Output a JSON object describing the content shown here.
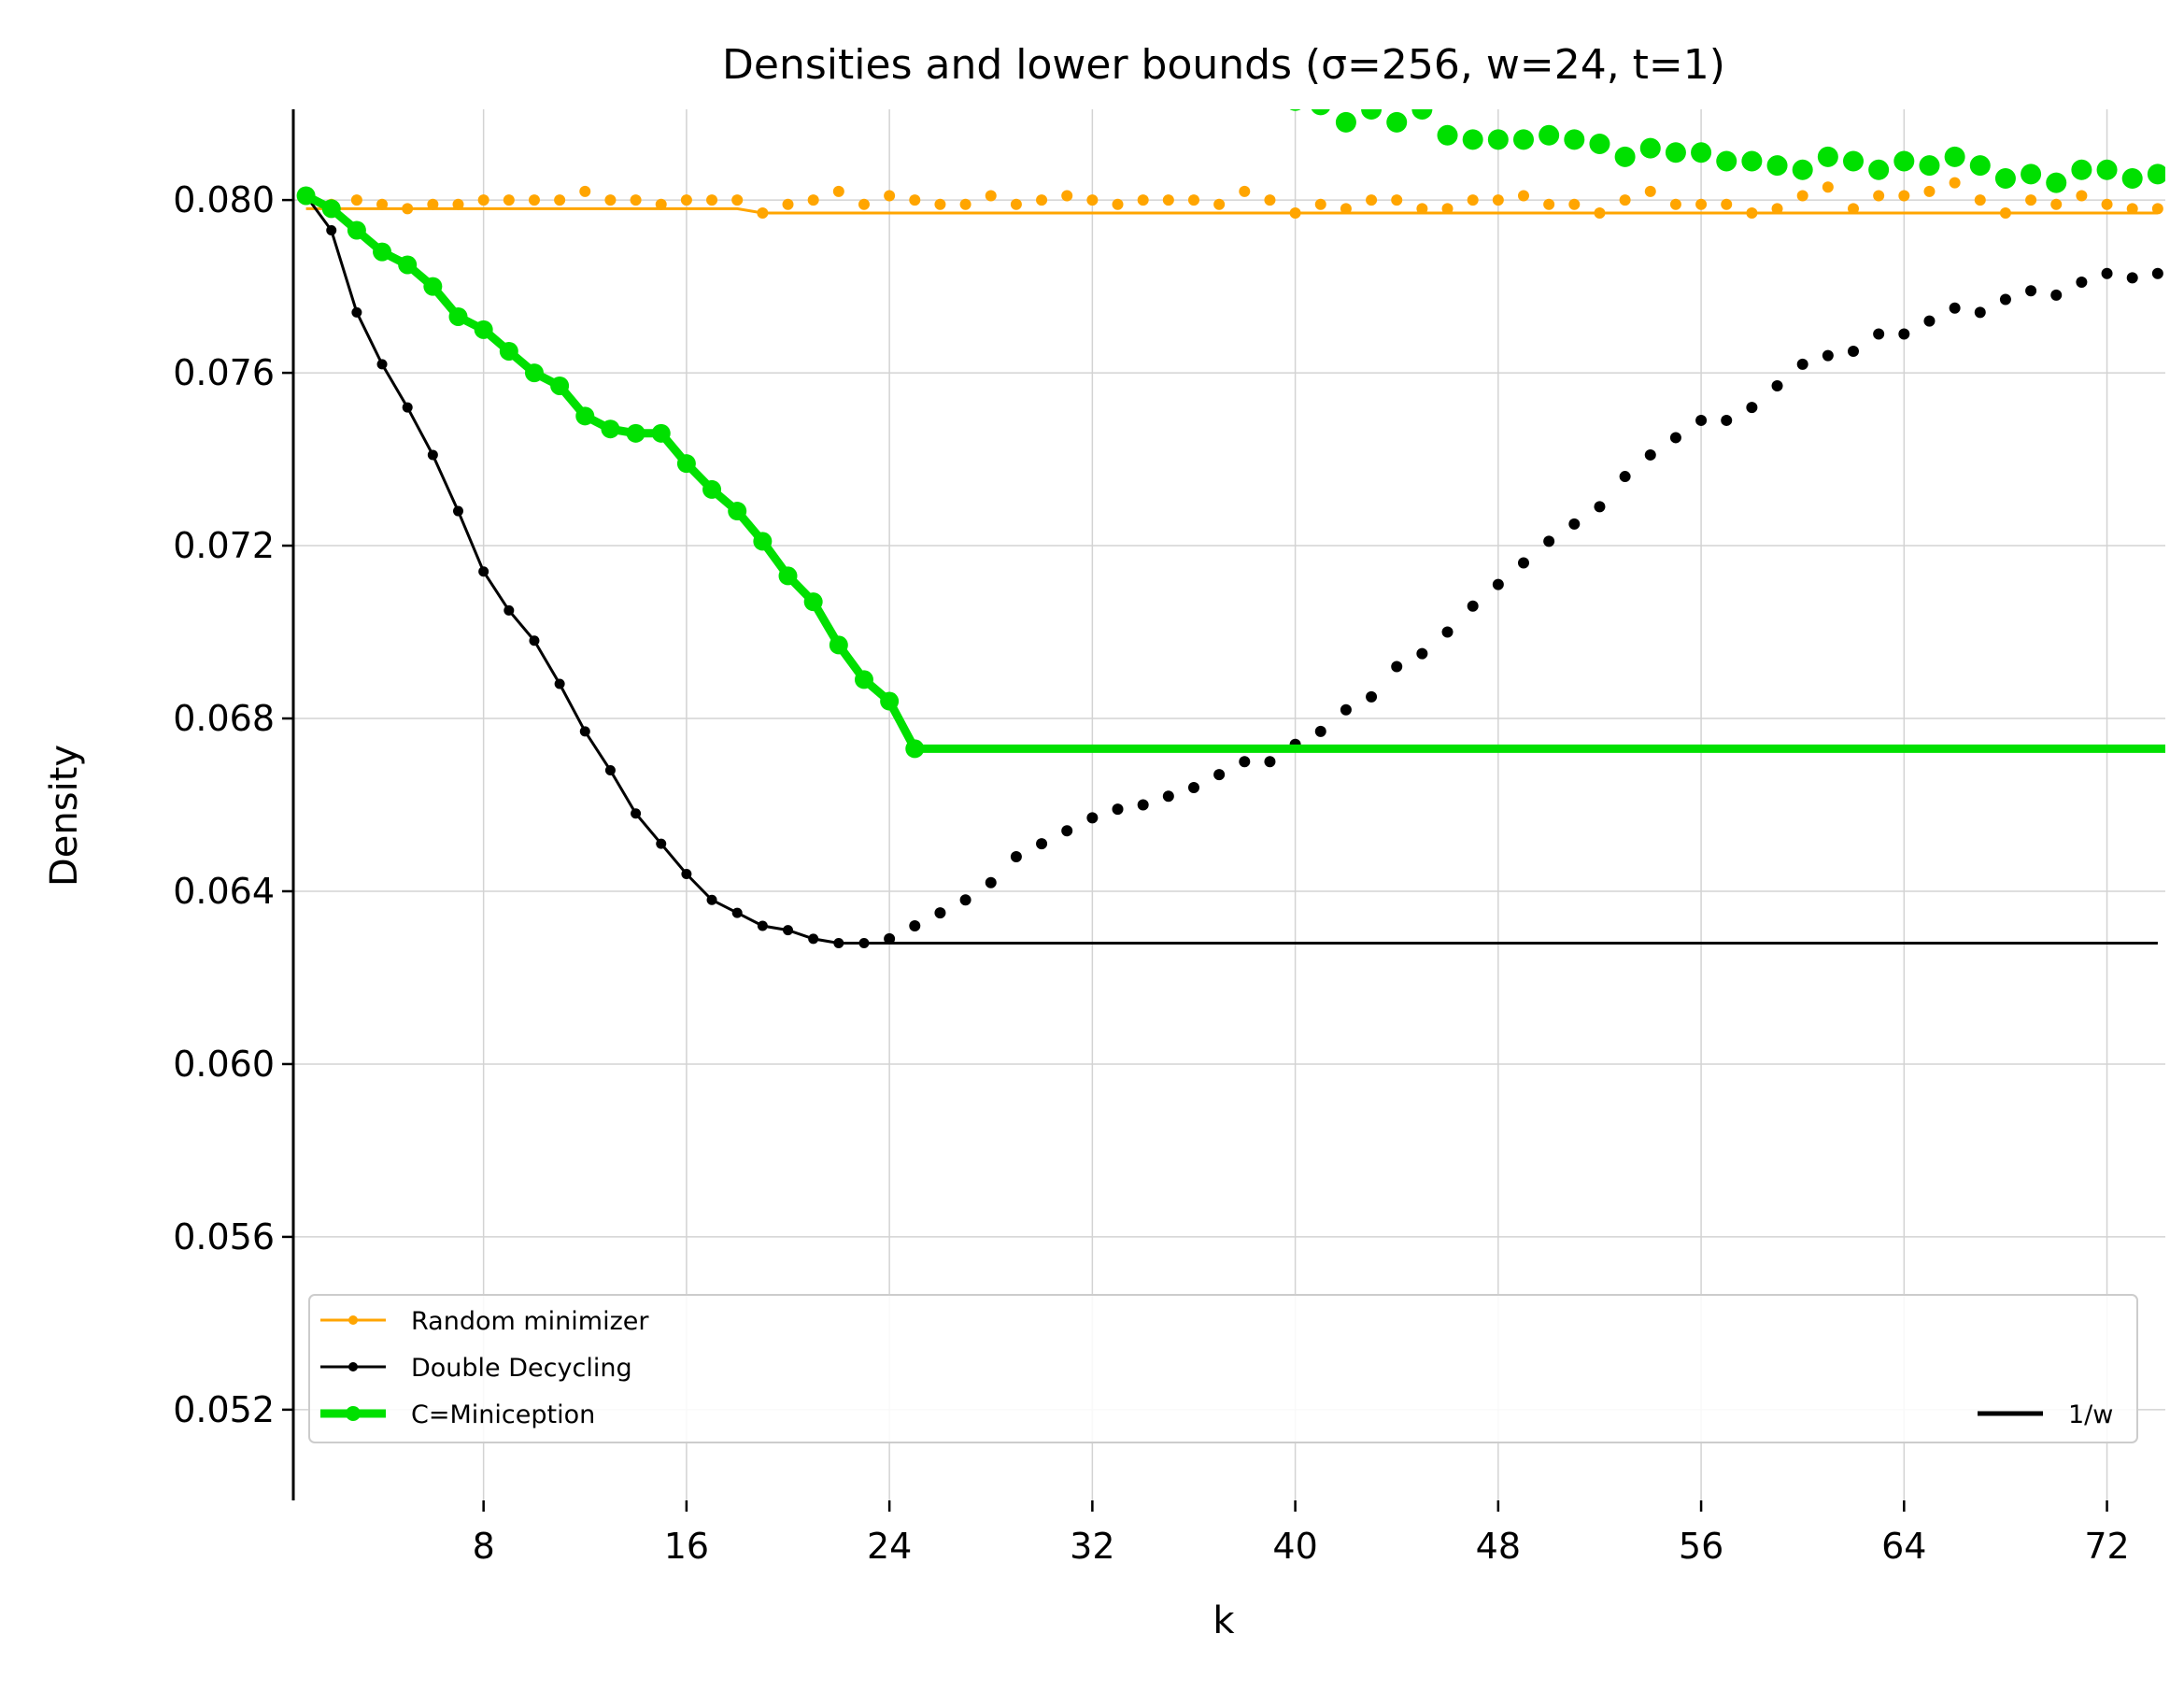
{
  "chart_data": {
    "type": "line",
    "title": "Densities and lower bounds (σ=256, w=24, t=1)",
    "xlabel": "k",
    "ylabel": "Density",
    "xlim": [
      0.5,
      74.3
    ],
    "ylim": [
      0.0499,
      0.0821
    ],
    "xticks": [
      8,
      16,
      24,
      32,
      40,
      48,
      56,
      64,
      72
    ],
    "yticks": [
      0.052,
      0.056,
      0.06,
      0.064,
      0.068,
      0.072,
      0.076,
      0.08
    ],
    "ytick_labels": [
      "0.052",
      "0.056",
      "0.060",
      "0.064",
      "0.068",
      "0.072",
      "0.076",
      "0.080"
    ],
    "grid": true,
    "legend_placement": "bottom",
    "colors": {
      "random": "#ffa500",
      "decycling": "#000000",
      "miniception": "#00e000",
      "grid": "#d3d3d3"
    },
    "series": [
      {
        "name": "Random minimizer",
        "style": "dots",
        "x": [
          1,
          2,
          3,
          4,
          5,
          6,
          7,
          8,
          9,
          10,
          11,
          12,
          13,
          14,
          15,
          16,
          17,
          18,
          19,
          20,
          21,
          22,
          23,
          24,
          25,
          26,
          27,
          28,
          29,
          30,
          31,
          32,
          33,
          34,
          35,
          36,
          37,
          38,
          39,
          40,
          41,
          42,
          43,
          44,
          45,
          46,
          47,
          48,
          49,
          50,
          51,
          52,
          53,
          54,
          55,
          56,
          57,
          58,
          59,
          60,
          61,
          62,
          63,
          64,
          65,
          66,
          67,
          68,
          69,
          70,
          71,
          72,
          73,
          74
        ],
        "values": [
          0.0801,
          0.0799,
          0.08,
          0.0799,
          0.0798,
          0.0799,
          0.0799,
          0.08,
          0.08,
          0.08,
          0.08,
          0.0802,
          0.08,
          0.08,
          0.0799,
          0.08,
          0.08,
          0.08,
          0.0797,
          0.0799,
          0.08,
          0.0802,
          0.0799,
          0.0801,
          0.08,
          0.0799,
          0.0799,
          0.0801,
          0.0799,
          0.08,
          0.0801,
          0.08,
          0.0799,
          0.08,
          0.08,
          0.08,
          0.0799,
          0.0802,
          0.08,
          0.0797,
          0.0799,
          0.0798,
          0.08,
          0.08,
          0.0798,
          0.0798,
          0.08,
          0.08,
          0.0801,
          0.0799,
          0.0799,
          0.0797,
          0.08,
          0.0802,
          0.0799,
          0.0799,
          0.0799,
          0.0797,
          0.0798,
          0.0801,
          0.0803,
          0.0798,
          0.0801,
          0.0801,
          0.0802,
          0.0804,
          0.08,
          0.0797,
          0.08,
          0.0799,
          0.0801,
          0.0799,
          0.0798,
          0.0798
        ]
      },
      {
        "name": "Random minimizer",
        "style": "lower-bound-line",
        "x": [
          1,
          18,
          19,
          74
        ],
        "values": [
          0.0798,
          0.0798,
          0.0797,
          0.0797
        ]
      },
      {
        "name": "Double Decycling",
        "style": "line-with-markers",
        "x": [
          1,
          2,
          3,
          4,
          5,
          6,
          7,
          8,
          9,
          10,
          11,
          12,
          13,
          14,
          15,
          16,
          17,
          18,
          19,
          20,
          21,
          22,
          23
        ],
        "values": [
          0.0801,
          0.0793,
          0.0774,
          0.0762,
          0.0752,
          0.0741,
          0.0728,
          0.0714,
          0.0705,
          0.0698,
          0.0688,
          0.0677,
          0.0668,
          0.0658,
          0.0651,
          0.0644,
          0.0638,
          0.0635,
          0.0632,
          0.0631,
          0.0629,
          0.0628,
          0.0628
        ]
      },
      {
        "name": "Double Decycling",
        "style": "dots",
        "x": [
          24,
          25,
          26,
          27,
          28,
          29,
          30,
          31,
          32,
          33,
          34,
          35,
          36,
          37,
          38,
          39,
          40,
          41,
          42,
          43,
          44,
          45,
          46,
          47,
          48,
          49,
          50,
          51,
          52,
          53,
          54,
          55,
          56,
          57,
          58,
          59,
          60,
          61,
          62,
          63,
          64,
          65,
          66,
          67,
          68,
          69,
          70,
          71,
          72,
          73,
          74
        ],
        "values": [
          0.0629,
          0.0632,
          0.0635,
          0.0638,
          0.0642,
          0.0648,
          0.0651,
          0.0654,
          0.0657,
          0.0659,
          0.066,
          0.0662,
          0.0664,
          0.0667,
          0.067,
          0.067,
          0.0674,
          0.0677,
          0.0682,
          0.0685,
          0.0692,
          0.0695,
          0.07,
          0.0706,
          0.0711,
          0.0716,
          0.0721,
          0.0725,
          0.0729,
          0.0736,
          0.0741,
          0.0745,
          0.0749,
          0.0749,
          0.0752,
          0.0757,
          0.0762,
          0.0764,
          0.0765,
          0.0769,
          0.0769,
          0.0772,
          0.0775,
          0.0774,
          0.0777,
          0.0779,
          0.0778,
          0.0781,
          0.0783,
          0.0782,
          0.0783
        ]
      },
      {
        "name": "1/w",
        "style": "flat-line",
        "x": [
          23,
          74
        ],
        "values": [
          0.0628,
          0.0628
        ]
      },
      {
        "name": "C=Miniception",
        "style": "thick-line-with-markers",
        "x": [
          1,
          2,
          3,
          4,
          5,
          6,
          7,
          8,
          9,
          10,
          11,
          12,
          13,
          14,
          15,
          16,
          17,
          18,
          19,
          20,
          21,
          22,
          23,
          24,
          25
        ],
        "values": [
          0.0801,
          0.0798,
          0.0793,
          0.0788,
          0.0785,
          0.078,
          0.0773,
          0.077,
          0.0765,
          0.076,
          0.0757,
          0.075,
          0.0747,
          0.0746,
          0.0746,
          0.0739,
          0.0733,
          0.0728,
          0.0721,
          0.0713,
          0.0707,
          0.0697,
          0.0689,
          0.0684,
          0.0673
        ]
      },
      {
        "name": "C=Miniception",
        "style": "flat-line",
        "x": [
          25,
          74.3
        ],
        "values": [
          0.0673,
          0.0673
        ]
      },
      {
        "name": "C=Miniception",
        "style": "large-dots",
        "x": [
          40,
          41,
          42,
          43,
          44,
          45,
          46,
          47,
          48,
          49,
          50,
          51,
          52,
          53,
          54,
          55,
          56,
          57,
          58,
          59,
          60,
          61,
          62,
          63,
          64,
          65,
          66,
          67,
          68,
          69,
          70,
          71,
          72,
          73,
          74
        ],
        "values": [
          0.0823,
          0.0822,
          0.0818,
          0.0821,
          0.0818,
          0.0821,
          0.0815,
          0.0814,
          0.0814,
          0.0814,
          0.0815,
          0.0814,
          0.0813,
          0.081,
          0.0812,
          0.0811,
          0.0811,
          0.0809,
          0.0809,
          0.0808,
          0.0807,
          0.081,
          0.0809,
          0.0807,
          0.0809,
          0.0808,
          0.081,
          0.0808,
          0.0805,
          0.0806,
          0.0804,
          0.0807,
          0.0807,
          0.0805,
          0.0806
        ]
      }
    ],
    "legend": [
      {
        "label": "Random minimizer",
        "color": "#ffa500"
      },
      {
        "label": "Double Decycling",
        "color": "#000000"
      },
      {
        "label": "C=Miniception",
        "color": "#00e000"
      },
      {
        "label": "1/w",
        "color": "#000000"
      }
    ]
  }
}
